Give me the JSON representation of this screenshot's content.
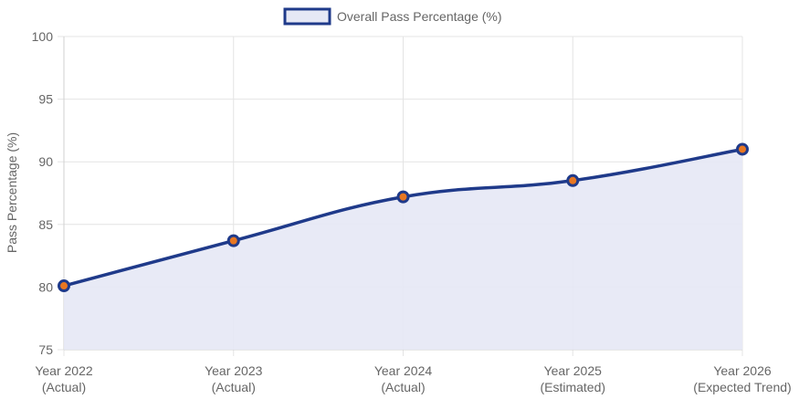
{
  "chart_data": {
    "type": "area",
    "title": "",
    "categories": [
      [
        "Year 2022",
        "(Actual)"
      ],
      [
        "Year 2023",
        "(Actual)"
      ],
      [
        "Year 2024",
        "(Actual)"
      ],
      [
        "Year 2025",
        "(Estimated)"
      ],
      [
        "Year 2026",
        "(Expected Trend)"
      ]
    ],
    "series": [
      {
        "name": "Overall Pass Percentage (%)",
        "values": [
          80.1,
          83.7,
          87.2,
          88.5,
          91.0
        ],
        "line_color": "#1f3a8a",
        "fill_color": "#e6e8f5",
        "point_color": "#e87722"
      }
    ],
    "xlabel": "",
    "ylabel": "Pass Percentage (%)",
    "ylim": [
      75,
      100
    ],
    "yticks": [
      75,
      80,
      85,
      90,
      95,
      100
    ],
    "grid": true,
    "legend_position": "top-center"
  }
}
